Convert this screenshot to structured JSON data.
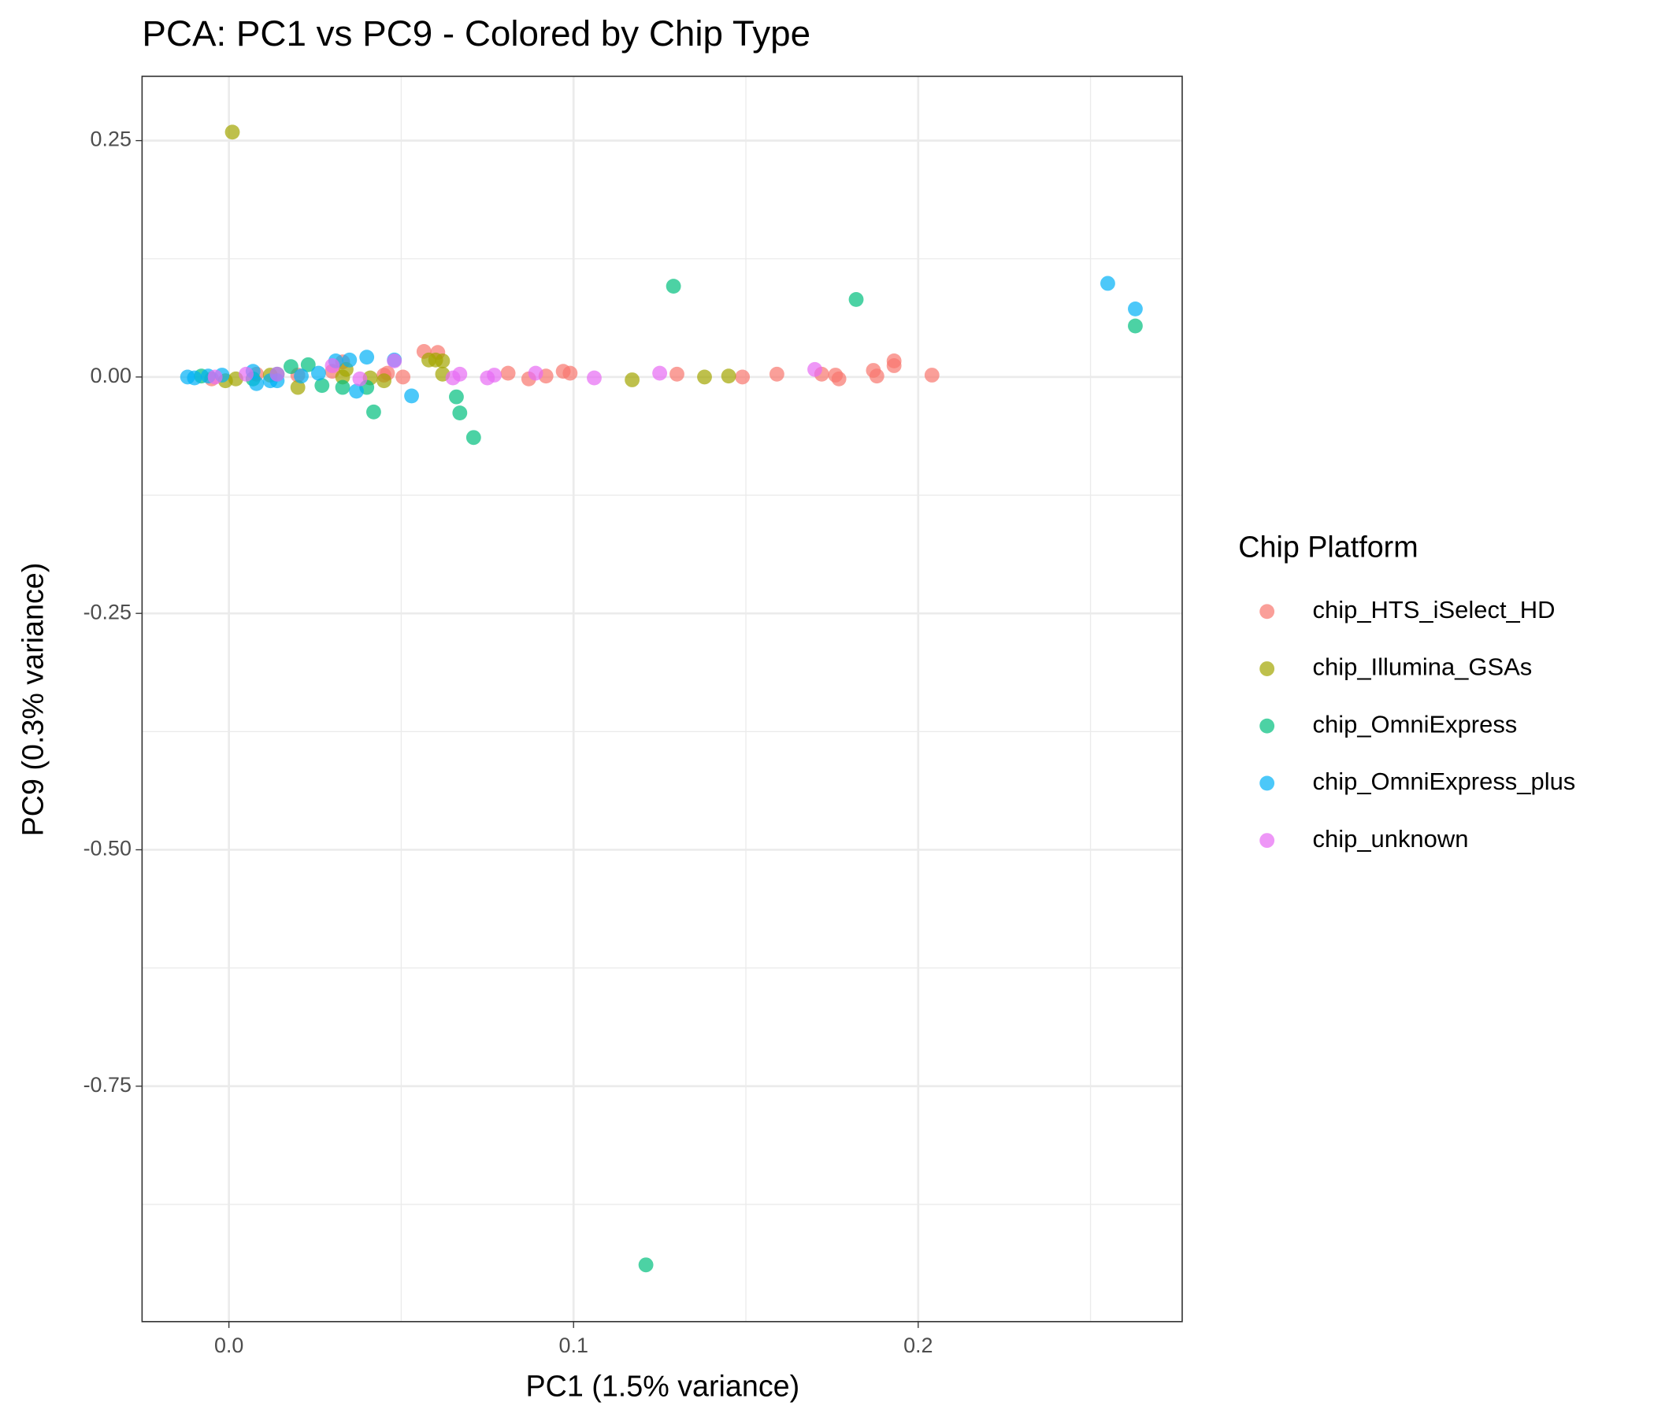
{
  "chart_data": {
    "type": "scatter",
    "title": "PCA: PC1 vs PC9 - Colored by Chip Type",
    "x_label": "PC1 (1.5% variance)",
    "y_label": "PC9 (0.3% variance)",
    "legend_title": "Chip Platform",
    "legend_position": "right",
    "grid": true,
    "xlim": [
      -0.0252,
      0.2766
    ],
    "ylim": [
      -0.999,
      0.318
    ],
    "xticks": [
      {
        "value": 0,
        "label": "0.0"
      },
      0.1,
      0.2
    ],
    "yticks": [
      0.25,
      {
        "value": 0,
        "label": "0.00"
      },
      -0.25,
      {
        "value": -0.5,
        "label": "-0.50"
      },
      -0.75
    ],
    "x_minor_grid": [
      0.05,
      0.15,
      0.25
    ],
    "y_minor_grid": [
      0.125,
      -0.125,
      -0.375,
      -0.625,
      -0.875
    ],
    "series": [
      {
        "name": "chip_HTS_iSelect_HD",
        "color": "#F8766D",
        "x": [
          0.0566,
          0.0606,
          0.0505,
          0.046,
          0.081,
          0.087,
          0.092,
          0.097,
          0.099,
          0.13,
          0.149,
          0.159,
          0.172,
          0.176,
          0.177,
          0.187,
          0.188,
          0.193,
          0.193,
          0.204,
          -0.005,
          0.008,
          0.02,
          0.033,
          0.03,
          0.045
        ],
        "values": [
          0.027,
          0.026,
          0,
          0.004,
          0.004,
          -0.002,
          0.001,
          0.006,
          0.004,
          0.003,
          0,
          0.003,
          0.003,
          0.002,
          -0.002,
          0.007,
          0.001,
          0.017,
          0.012,
          0.002,
          -0.002,
          0.003,
          0.002,
          0.016,
          0.006,
          0.002
        ]
      },
      {
        "name": "chip_Illumina_GSAs",
        "color": "#A3A500",
        "x": [
          0.001,
          0.058,
          0.06,
          0.062,
          0.062,
          0.117,
          0.138,
          0.145,
          0.002,
          -0.001,
          0.02,
          0.034,
          0.033,
          0.045,
          0.012,
          0.041
        ],
        "values": [
          0.259,
          0.018,
          0.018,
          0.017,
          0.003,
          -0.003,
          0,
          0.001,
          -0.002,
          -0.004,
          -0.011,
          0.008,
          0,
          -0.004,
          0.002,
          -0.001
        ]
      },
      {
        "name": "chip_OmniExpress",
        "color": "#00BF7D",
        "x": [
          0.129,
          0.182,
          0.263,
          0.121,
          0.066,
          0.067,
          0.071,
          0.042,
          0.04,
          0.033,
          0.027,
          0.023,
          0.018,
          -0.008,
          0.007,
          0.014
        ],
        "values": [
          0.096,
          0.082,
          0.054,
          -0.939,
          -0.021,
          -0.038,
          -0.064,
          -0.037,
          -0.011,
          -0.011,
          -0.009,
          0.013,
          0.011,
          0.001,
          -0.002,
          0.003
        ]
      },
      {
        "name": "chip_OmniExpress_plus",
        "color": "#00B0F6",
        "x": [
          0.255,
          0.263,
          0.053,
          0.048,
          0.04,
          0.035,
          0.031,
          0.037,
          -0.012,
          -0.01,
          -0.006,
          -0.002,
          0.007,
          0.008,
          0.012,
          0.014,
          0.021,
          0.026
        ],
        "values": [
          0.099,
          0.072,
          -0.02,
          0.018,
          0.021,
          0.018,
          0.017,
          -0.015,
          0,
          -0.001,
          0.001,
          0.002,
          0.006,
          -0.007,
          -0.004,
          -0.004,
          0.001,
          0.004
        ]
      },
      {
        "name": "chip_unknown",
        "color": "#E76BF3",
        "x": [
          0.048,
          0.067,
          0.065,
          0.075,
          0.077,
          0.089,
          0.106,
          0.125,
          0.17,
          -0.004,
          0.005,
          0.014,
          0.038,
          0.03
        ],
        "values": [
          0.017,
          0.003,
          -0.001,
          -0.001,
          0.002,
          0.004,
          -0.001,
          0.004,
          0.008,
          0,
          0.003,
          0.003,
          -0.002,
          0.012
        ]
      }
    ]
  }
}
